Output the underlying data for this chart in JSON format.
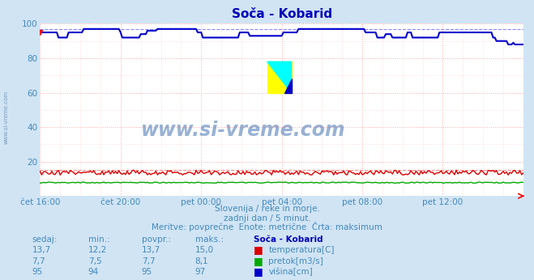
{
  "title": "Soča - Kobarid",
  "bg_color": "#d0e4f4",
  "plot_bg_color": "#ffffff",
  "grid_color_major": "#ffaaaa",
  "grid_color_minor": "#ffd0d0",
  "x_labels": [
    "čet 16:00",
    "čet 20:00",
    "pet 00:00",
    "pet 04:00",
    "pet 08:00",
    "pet 12:00"
  ],
  "x_ticks": [
    0,
    48,
    96,
    144,
    192,
    240
  ],
  "x_max": 288,
  "y_min": 0,
  "y_max": 100,
  "y_ticks": [
    20,
    40,
    60,
    80,
    100
  ],
  "temp_avg": 13.7,
  "temp_min": 12.2,
  "temp_max": 15.0,
  "pretok_avg": 7.7,
  "pretok_min": 7.5,
  "pretok_max": 8.1,
  "visina_avg": 95,
  "visina_min": 94,
  "visina_max": 97,
  "temp_color": "#dd0000",
  "pretok_color": "#00aa00",
  "visina_color": "#0000cc",
  "dashed_color_temp": "#ff8888",
  "dashed_color_visina": "#8888ff",
  "watermark": "www.si-vreme.com",
  "subtitle1": "Slovenija / reke in morje.",
  "subtitle2": "zadnji dan / 5 minut.",
  "subtitle3": "Meritve: povprečne  Enote: metrične  Črta: maksimum",
  "label_color": "#4488bb",
  "title_color": "#0000bb",
  "header_color": "#0000bb"
}
